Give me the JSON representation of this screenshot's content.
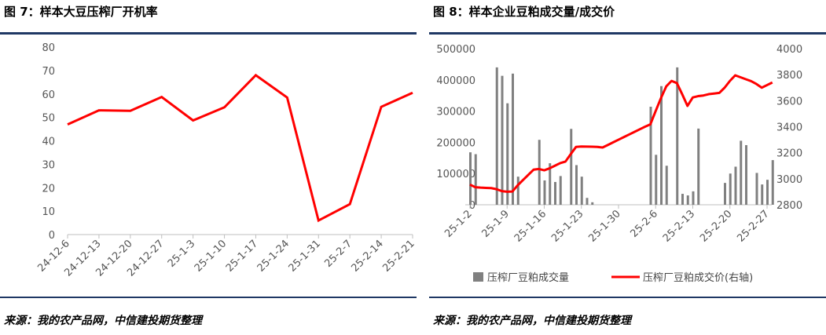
{
  "chart_data": [
    {
      "type": "line",
      "title": "图 7：样本大豆压榨厂开机率",
      "source": "来源：我的农产品网，中信建投期货整理",
      "ylim": [
        0,
        80
      ],
      "yticks": [
        0,
        10,
        20,
        30,
        40,
        50,
        60,
        70,
        80
      ],
      "categories": [
        "24-12-6",
        "24-12-13",
        "24-12-20",
        "24-12-27",
        "25-1-3",
        "25-1-10",
        "25-1-17",
        "25-1-24",
        "25-1-31",
        "25-2-7",
        "25-2-14",
        "25-2-21"
      ],
      "series": [
        {
          "name": "",
          "color": "#ff0000",
          "values": [
            47,
            53,
            52.8,
            58.7,
            48.7,
            54.3,
            68,
            58.5,
            6,
            13,
            54.5,
            60.5
          ]
        }
      ],
      "grid": false
    },
    {
      "type": "bar+line",
      "title": "图 8：样本企业豆粕成交量/成交价",
      "source": "来源：我的农产品网，中信建投期货整理",
      "ylim_left": [
        0,
        500000
      ],
      "yticks_left": [
        "0",
        "100000",
        "200000",
        "300000",
        "400000",
        "500000"
      ],
      "ylim_right": [
        2800,
        4000
      ],
      "yticks_right": [
        "2800",
        "3000",
        "3200",
        "3400",
        "3600",
        "3800",
        "4000"
      ],
      "x_tick_labels": [
        "25-1-2",
        "25-1-9",
        "25-1-16",
        "25-1-23",
        "25-1-30",
        "25-2-6",
        "25-2-13",
        "25-2-20",
        "25-2-27"
      ],
      "x_days": [
        0,
        7,
        14,
        21,
        28,
        35,
        42,
        49,
        56
      ],
      "legend": {
        "position": "bottom",
        "bar_label": "压榨厂豆粕成交量",
        "line_label": "压榨厂豆粕成交价(右轴)"
      },
      "bar_series": {
        "name": "压榨厂豆粕成交量",
        "color": "#808080",
        "day": [
          0,
          1,
          5,
          6,
          7,
          8,
          9,
          13,
          14,
          15,
          16,
          17,
          19,
          20,
          21,
          22,
          23,
          34,
          35,
          36,
          37,
          39,
          40,
          41,
          42,
          43,
          48,
          49,
          50,
          51,
          52,
          54,
          55,
          56,
          57
        ],
        "values": [
          168000,
          162000,
          440000,
          413000,
          325000,
          420000,
          90000,
          208000,
          78000,
          133000,
          73000,
          92000,
          243000,
          127000,
          90000,
          22000,
          8000,
          314000,
          160000,
          380000,
          125000,
          440000,
          35000,
          30000,
          43000,
          244000,
          70000,
          100000,
          122000,
          205000,
          191000,
          102000,
          65000,
          80000,
          143000
        ]
      },
      "line_series": {
        "name": "压榨厂豆粕成交价(右轴)",
        "color": "#ff0000",
        "day": [
          0,
          1,
          2,
          3,
          4,
          5,
          6,
          7,
          8,
          9,
          10,
          11,
          12,
          13,
          14,
          15,
          16,
          17,
          18,
          19,
          20,
          21,
          22,
          23,
          24,
          25,
          26,
          27,
          28,
          29,
          30,
          31,
          32,
          33,
          34,
          35,
          36,
          37,
          38,
          39,
          40,
          41,
          42,
          43,
          44,
          45,
          46,
          47,
          48,
          49,
          50,
          51,
          52,
          53,
          54,
          55,
          56,
          57
        ],
        "values": [
          2955,
          2935,
          2932,
          2930,
          2928,
          2920,
          2905,
          2900,
          2902,
          2950,
          2990,
          3030,
          3070,
          3075,
          3065,
          3080,
          3100,
          3120,
          3132,
          3190,
          3245,
          3248,
          3247,
          3246,
          3245,
          3240,
          3260,
          3280,
          3300,
          3320,
          3340,
          3360,
          3380,
          3400,
          3418,
          3520,
          3620,
          3710,
          3752,
          3735,
          3650,
          3560,
          3625,
          3635,
          3640,
          3650,
          3655,
          3660,
          3700,
          3752,
          3795,
          3780,
          3765,
          3750,
          3728,
          3700,
          3720,
          3740
        ]
      }
    }
  ]
}
